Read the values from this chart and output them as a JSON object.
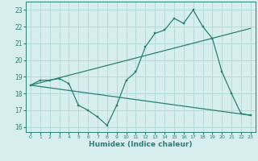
{
  "line1_x": [
    0,
    1,
    2,
    3,
    4,
    5,
    6,
    7,
    8,
    9,
    10,
    11,
    12,
    13,
    14,
    15,
    16,
    17,
    18,
    19,
    20,
    21,
    22,
    23
  ],
  "line1_y": [
    18.5,
    18.8,
    18.8,
    18.9,
    18.6,
    17.3,
    17.0,
    16.6,
    16.1,
    17.3,
    18.8,
    19.3,
    20.8,
    21.6,
    21.8,
    22.5,
    22.2,
    23.0,
    22.0,
    21.3,
    19.3,
    18.0,
    16.8,
    16.7
  ],
  "line2_x": [
    0,
    23
  ],
  "line2_y": [
    18.5,
    21.9
  ],
  "line3_x": [
    0,
    23
  ],
  "line3_y": [
    18.5,
    16.7
  ],
  "line_color": "#2a7f72",
  "bg_color": "#d6eeee",
  "grid_color": "#aad4d4",
  "xlabel": "Humidex (Indice chaleur)",
  "xlim": [
    -0.5,
    23.5
  ],
  "ylim": [
    15.7,
    23.5
  ],
  "yticks": [
    16,
    17,
    18,
    19,
    20,
    21,
    22,
    23
  ],
  "xticks": [
    0,
    1,
    2,
    3,
    4,
    5,
    6,
    7,
    8,
    9,
    10,
    11,
    12,
    13,
    14,
    15,
    16,
    17,
    18,
    19,
    20,
    21,
    22,
    23
  ]
}
